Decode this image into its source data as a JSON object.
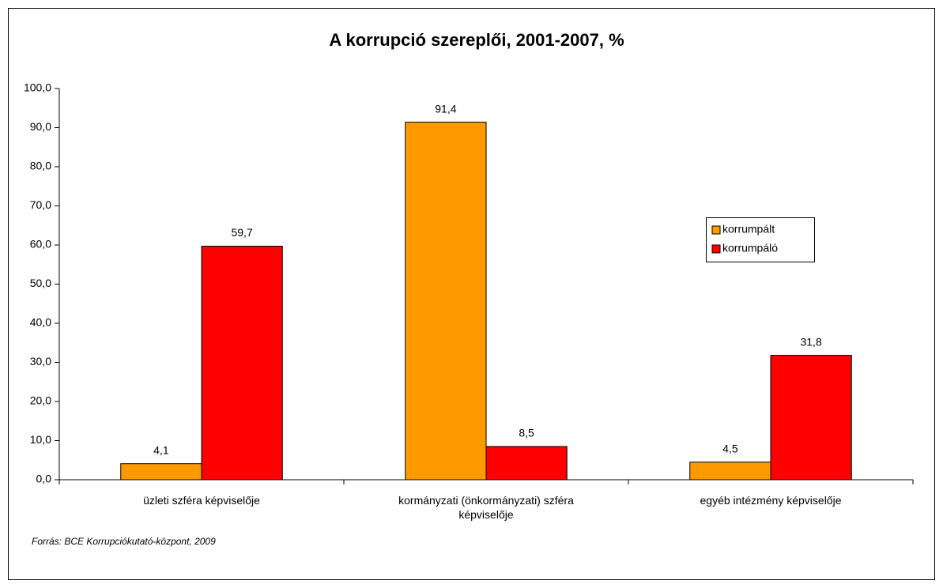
{
  "chart_data": {
    "type": "bar",
    "title": "A korrupció szereplői, 2001-2007, %",
    "source": "Forrás: BCE Korrupciókutató-központ, 2009",
    "categories": [
      "üzleti szféra képviselője",
      "kormányzati (önkormányzati) szféra képviselője",
      "egyéb intézmény képviselője"
    ],
    "series": [
      {
        "name": "korrumpált",
        "color": "#ff9900",
        "values": [
          4.1,
          91.4,
          4.5
        ],
        "value_labels": [
          "4,1",
          "91,4",
          "4,5"
        ]
      },
      {
        "name": "korrumpáló",
        "color": "#ff0000",
        "values": [
          59.7,
          8.5,
          31.8
        ],
        "value_labels": [
          "59,7",
          "8,5",
          "31,8"
        ]
      }
    ],
    "ylim": [
      0,
      100
    ],
    "yticks": [
      {
        "value": 0,
        "label": "0,0"
      },
      {
        "value": 10,
        "label": "10,0"
      },
      {
        "value": 20,
        "label": "20,0"
      },
      {
        "value": 30,
        "label": "30,0"
      },
      {
        "value": 40,
        "label": "40,0"
      },
      {
        "value": 50,
        "label": "50,0"
      },
      {
        "value": 60,
        "label": "60,0"
      },
      {
        "value": 70,
        "label": "70,0"
      },
      {
        "value": 80,
        "label": "80,0"
      },
      {
        "value": 90,
        "label": "90,0"
      },
      {
        "value": 100,
        "label": "100,0"
      }
    ],
    "grid": false,
    "legend": "right"
  }
}
